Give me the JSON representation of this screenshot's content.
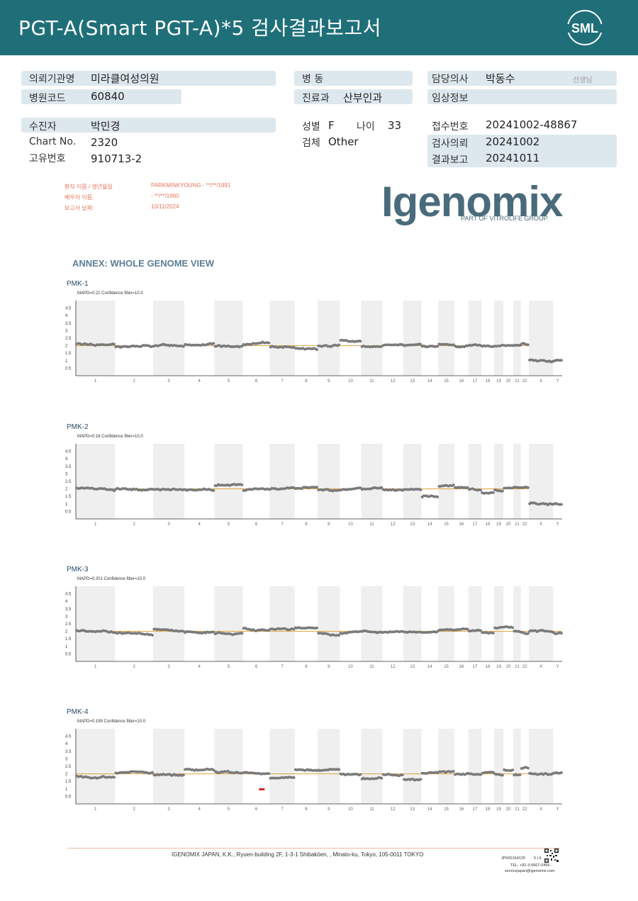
{
  "header": {
    "title": "PGT-A(Smart  PGT-A)*5 검사결과보고서",
    "logo_text": "SML",
    "brand_color": "#1f6f79"
  },
  "patient_info": {
    "institution_label": "의뢰기관명",
    "institution_value": "미라클여성의원",
    "hospital_code_label": "병원코드",
    "hospital_code_value": "60840",
    "ward_label": "병  동",
    "ward_value": "",
    "department_label": "진료과",
    "department_value": "산부인과",
    "doctor_label": "담당의사",
    "doctor_value": "박동수",
    "doctor_suffix": "선생님",
    "clinical_label": "임상정보",
    "clinical_value": "",
    "examinee_label": "수진자",
    "examinee_value": "박민경",
    "chart_no_label": "Chart No.",
    "chart_no_value": "2320",
    "unique_no_label": "고유번호",
    "unique_no_value": "910713-2",
    "sex_label": "성별",
    "sex_value": "F",
    "age_label": "나이",
    "age_value": "33",
    "specimen_label": "검체",
    "specimen_value": "Other",
    "receipt_no_label": "접수번호",
    "receipt_no_value": "20241002-48867",
    "request_date_label": "검사의뢰",
    "request_date_value": "20241002",
    "report_date_label": "결과보고",
    "report_date_value": "20241011"
  },
  "embedded_report": {
    "line1_label": "환자 이름 / 생년월일",
    "line1_value": "PARKMINKYOUNG - **/**/1991",
    "line2_label": "배우자 이름:",
    "line2_value": "- **/**/1990",
    "line3_label": "보고서 날짜:",
    "line3_value": "10/11/2024",
    "logo_text": "Igenomix",
    "logo_sub": "PART OF VITROLIFE GROUP",
    "annex_title": "ANNEX: WHOLE GENOME VIEW"
  },
  "chart_data": [
    {
      "type": "scatter",
      "title": "PMK-1",
      "subtitle": "MAPD=0.21 Confidence filter=10.0",
      "yticks": [
        "4.5",
        "4",
        "3.5",
        "3",
        "2.5",
        "2",
        "1.5",
        "1",
        "0.5"
      ],
      "ylim": [
        0,
        5
      ],
      "reference_line": 2,
      "categories": [
        "1",
        "2",
        "3",
        "4",
        "5",
        "6",
        "7",
        "8",
        "9",
        "10",
        "11",
        "12",
        "13",
        "14",
        "15",
        "16",
        "17",
        "18",
        "19",
        "20",
        "21",
        "22",
        "X",
        "Y"
      ],
      "values": [
        2.1,
        1.95,
        2.0,
        2.1,
        1.95,
        2.1,
        1.95,
        1.85,
        1.95,
        2.4,
        1.95,
        2.05,
        2.0,
        1.95,
        2.05,
        1.95,
        2.0,
        1.95,
        2.0,
        2.0,
        2.05,
        2.1,
        1.0,
        1.0
      ]
    },
    {
      "type": "scatter",
      "title": "PMK-2",
      "subtitle": "MAPD=0.18 Confidence filter=10.0",
      "yticks": [
        "4.5",
        "4",
        "3.5",
        "3",
        "2.5",
        "2",
        "1.5",
        "1",
        "0.5"
      ],
      "ylim": [
        0,
        5
      ],
      "reference_line": 2,
      "categories": [
        "1",
        "2",
        "3",
        "4",
        "5",
        "6",
        "7",
        "8",
        "9",
        "10",
        "11",
        "12",
        "13",
        "14",
        "15",
        "16",
        "17",
        "18",
        "19",
        "20",
        "21",
        "22",
        "X",
        "Y"
      ],
      "values": [
        2.05,
        2.0,
        1.95,
        1.95,
        2.25,
        1.9,
        2.0,
        2.0,
        1.95,
        1.95,
        2.0,
        1.95,
        1.95,
        1.5,
        2.15,
        2.05,
        2.0,
        1.7,
        1.95,
        2.05,
        2.1,
        2.1,
        1.05,
        1.0
      ]
    },
    {
      "type": "scatter",
      "title": "PMK-3",
      "subtitle": "MAPD=0.201 Confidence filter=10.0",
      "yticks": [
        "4.5",
        "4",
        "3.5",
        "3",
        "2.5",
        "2",
        "1.5",
        "1",
        "0.5"
      ],
      "ylim": [
        0,
        5
      ],
      "reference_line": 2,
      "categories": [
        "1",
        "2",
        "3",
        "4",
        "5",
        "6",
        "7",
        "8",
        "9",
        "10",
        "11",
        "12",
        "13",
        "14",
        "15",
        "16",
        "17",
        "18",
        "19",
        "20",
        "21",
        "22",
        "X",
        "Y"
      ],
      "values": [
        2.05,
        1.85,
        2.15,
        1.95,
        1.85,
        2.2,
        2.1,
        2.25,
        1.9,
        1.9,
        2.0,
        1.95,
        2.0,
        1.95,
        2.1,
        2.1,
        2.0,
        1.9,
        2.25,
        2.3,
        2.05,
        1.9,
        2.0,
        1.9
      ]
    },
    {
      "type": "scatter",
      "title": "PMK-4",
      "subtitle": "MAPD=0.199 Confidence filter=10.0",
      "yticks": [
        "4.5",
        "4",
        "3.5",
        "3",
        "2.5",
        "2",
        "1.5",
        "1",
        "0.5"
      ],
      "ylim": [
        0,
        5
      ],
      "reference_line": 2,
      "categories": [
        "1",
        "2",
        "3",
        "4",
        "5",
        "6",
        "7",
        "8",
        "9",
        "10",
        "11",
        "12",
        "13",
        "14",
        "15",
        "16",
        "17",
        "18",
        "19",
        "20",
        "21",
        "22",
        "X",
        "Y"
      ],
      "values": [
        1.85,
        2.05,
        1.9,
        2.3,
        2.15,
        2.05,
        1.7,
        2.3,
        2.2,
        2.0,
        1.7,
        1.95,
        1.6,
        2.0,
        2.15,
        2.0,
        2.0,
        2.05,
        2.0,
        2.25,
        1.9,
        2.4,
        2.0,
        2.05
      ],
      "outlier": {
        "category": "6",
        "value": 0.95,
        "color": "#cc2222"
      }
    }
  ],
  "footer": {
    "address": "IGENOMIX JAPAN, K.K., Ryuen-building 2F, 1-3-1 Shibakōen, , Minato-ku, Tokyo, 105-0011 TOKYO",
    "doc_code": "JP000164129",
    "page": "5 | 6",
    "phone": "TEL: +81-3-6667-0456 -",
    "email": "servicejapan@igenomix.com"
  }
}
